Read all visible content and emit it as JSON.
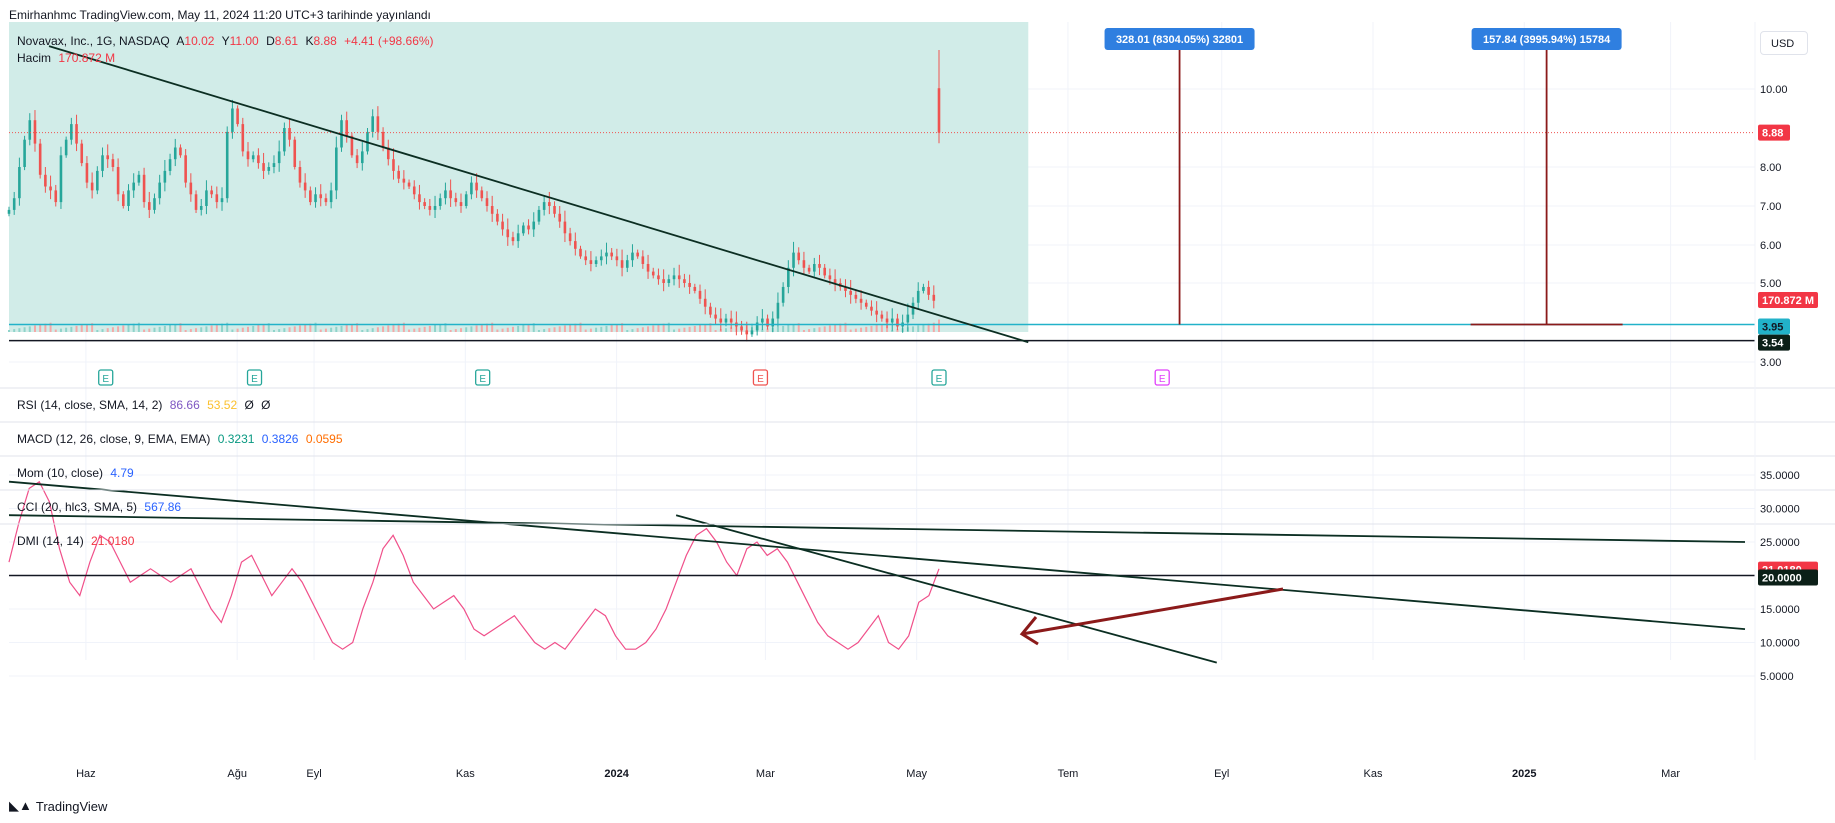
{
  "published": "Emirhanhmc TradingView.com, May 11, 2024 11:20 UTC+3 tarihinde yayınlandı",
  "currency_button": "USD",
  "logo_text": "TradingView",
  "main_legend": {
    "symbol": "Novavax, Inc., 1G, NASDAQ",
    "open_label": "A",
    "open": "10.02",
    "high_label": "Y",
    "high": "11.00",
    "low_label": "D",
    "low": "8.61",
    "close_label": "K",
    "close": "8.88",
    "change": "+4.41 (+98.66%)",
    "volume_label": "Hacim",
    "volume": "170.872 M"
  },
  "indicators": {
    "rsi": {
      "label": "RSI (14, close, SMA, 14, 2)",
      "v1": "86.66",
      "v2": "53.52",
      "v3": "Ø",
      "v4": "Ø"
    },
    "macd": {
      "label": "MACD (12, 26, close, 9, EMA, EMA)",
      "v1": "0.3231",
      "v2": "0.3826",
      "v3": "0.0595"
    },
    "mom": {
      "label": "Mom (10, close)",
      "v1": "4.79"
    },
    "cci": {
      "label": "CCI (20, hlc3, SMA, 5)",
      "v1": "567.86"
    },
    "dmi": {
      "label": "DMI (14, 14)",
      "v1": "21.0180"
    }
  },
  "measure_boxes": [
    {
      "text": "328.01 (8304.05%) 32801"
    },
    {
      "text": "157.84 (3995.94%) 15784"
    }
  ],
  "price_badges": {
    "last": "8.88",
    "volume": "170.872 M",
    "support1": "3.95",
    "support2": "3.54",
    "dmi_value": "21.0180",
    "dmi_level": "20.0000"
  },
  "earnings_marker": "E",
  "colors": {
    "up": "#26a69a",
    "down": "#ef5350",
    "highlight": "#d1ece8",
    "trend": "#0b2e22",
    "support_cyan": "#22b2c9",
    "dmi": "#f0508a",
    "measure_box": "#2f7fe0",
    "measure_line": "#8b1a1a",
    "arrow": "#8b1a1a",
    "rsi_v1": "#7e57c2",
    "macd_v1": "#089981",
    "macd_v2": "#2962ff",
    "macd_v3": "#ff6d00",
    "mom_v1": "#2962ff",
    "cci_v1": "#2962ff",
    "dmi_v1": "#f23645"
  },
  "chart_data": [
    {
      "type": "candlestick",
      "series_name": "Novavax, Inc., 1G, NASDAQ",
      "x_ticks": [
        "Haz",
        "Ağu",
        "Eyl",
        "Kas",
        "2024",
        "Mar",
        "May",
        "Tem",
        "Eyl",
        "Kas",
        "2025",
        "Mar"
      ],
      "y_ticks": [
        "3.00",
        "5.00",
        "6.00",
        "7.00",
        "8.00",
        "10.00"
      ],
      "ylim": [
        2.8,
        11.2
      ],
      "x_range": [
        "2023-05-01",
        "2025-03-31"
      ],
      "last_candle": {
        "date": "2024-05-10",
        "open": 10.02,
        "high": 11.0,
        "low": 8.61,
        "close": 8.88
      },
      "horizontal_lines": [
        3.95,
        3.54
      ],
      "trendline": [
        {
          "x": "2023-05-01",
          "y": 11.1
        },
        {
          "x": "2024-06-15",
          "y": 3.5
        }
      ],
      "measure_lines": [
        {
          "x": "2024-08-15",
          "label": "328.01 (8304.05%) 32801"
        },
        {
          "x": "2025-01-10",
          "label": "157.84 (3995.94%) 15784"
        }
      ],
      "earnings_dates": [
        "2023-06-09",
        "2023-08-08",
        "2023-11-08",
        "2024-02-28",
        "2024-05-10",
        "2024-08-08"
      ],
      "closes_approx": [
        6.9,
        7.2,
        8.0,
        8.7,
        9.2,
        8.6,
        7.8,
        7.5,
        7.4,
        7.1,
        8.3,
        8.7,
        9.1,
        8.6,
        8.1,
        7.6,
        7.4,
        7.9,
        8.3,
        8.2,
        8.0,
        7.3,
        7.0,
        7.4,
        7.6,
        7.8,
        7.1,
        6.9,
        7.2,
        7.6,
        7.9,
        8.2,
        8.5,
        8.3,
        7.6,
        7.3,
        6.9,
        7.0,
        7.4,
        7.3,
        7.1,
        7.2,
        8.9,
        9.5,
        9.1,
        8.4,
        8.2,
        8.3,
        8.1,
        7.9,
        8.0,
        8.1,
        8.4,
        9.0,
        8.7,
        8.0,
        7.6,
        7.4,
        7.1,
        7.3,
        7.2,
        7.1,
        7.4,
        8.5,
        9.2,
        8.8,
        8.3,
        8.1,
        8.4,
        8.9,
        9.3,
        8.9,
        8.5,
        8.2,
        7.9,
        7.7,
        7.6,
        7.5,
        7.3,
        7.1,
        7.0,
        6.9,
        7.0,
        7.2,
        7.4,
        7.2,
        7.1,
        7.0,
        7.3,
        7.6,
        7.4,
        7.2,
        7.0,
        6.8,
        6.6,
        6.4,
        6.2,
        6.1,
        6.3,
        6.5,
        6.4,
        6.6,
        6.9,
        7.1,
        7.0,
        6.8,
        6.6,
        6.3,
        6.1,
        5.9,
        5.7,
        5.6,
        5.5,
        5.6,
        5.7,
        5.8,
        5.7,
        5.6,
        5.4,
        5.6,
        5.8,
        5.7,
        5.5,
        5.3,
        5.2,
        5.1,
        5.0,
        5.1,
        5.2,
        5.1,
        5.0,
        4.9,
        4.8,
        4.6,
        4.4,
        4.2,
        4.1,
        4.0,
        4.1,
        4.0,
        3.9,
        3.8,
        3.7,
        3.8,
        4.0,
        4.1,
        3.9,
        4.1,
        4.5,
        4.9,
        5.4,
        5.8,
        5.6,
        5.4,
        5.3,
        5.5,
        5.4,
        5.2,
        5.1,
        5.0,
        4.9,
        4.8,
        4.7,
        4.6,
        4.5,
        4.4,
        4.3,
        4.2,
        4.1,
        4.0,
        4.1,
        3.9,
        4.0,
        4.2,
        4.5,
        4.8,
        4.9,
        4.7,
        4.55,
        8.88
      ]
    },
    {
      "type": "line",
      "series_name": "DMI (14, 14)",
      "y_ticks": [
        "5.0000",
        "10.0000",
        "15.0000",
        "20.0000",
        "25.0000",
        "30.0000",
        "35.0000"
      ],
      "ylim": [
        2,
        36
      ],
      "horizontal_lines": [
        20
      ],
      "last_value": 21.018,
      "values_approx": [
        22,
        28,
        33,
        34,
        31,
        24,
        19,
        17,
        22,
        26,
        25,
        22,
        19,
        20,
        21,
        20,
        19,
        20,
        21,
        18,
        15,
        13,
        17,
        22,
        23,
        20,
        17,
        19,
        21,
        19,
        16,
        13,
        10,
        9,
        10,
        15,
        19,
        24,
        26,
        23,
        19,
        17,
        15,
        16,
        17,
        15,
        12,
        11,
        12,
        13,
        14,
        12,
        10,
        9,
        10,
        9,
        11,
        13,
        15,
        14,
        11,
        9,
        9,
        10,
        12,
        15,
        19,
        23,
        26,
        27,
        25,
        22,
        20,
        24,
        25,
        23,
        24,
        22,
        19,
        16,
        13,
        11,
        10,
        9,
        10,
        12,
        14,
        10,
        9,
        11,
        16,
        17,
        21
      ],
      "trendlines": [
        {
          "from": [
            "2023-05-01",
            29
          ],
          "to": [
            "2025-03-31",
            25
          ]
        },
        {
          "from": [
            "2023-05-01",
            34
          ],
          "to": [
            "2025-03-31",
            12
          ]
        },
        {
          "from": [
            "2024-01-25",
            29
          ],
          "to": [
            "2024-08-30",
            7
          ]
        }
      ]
    }
  ]
}
